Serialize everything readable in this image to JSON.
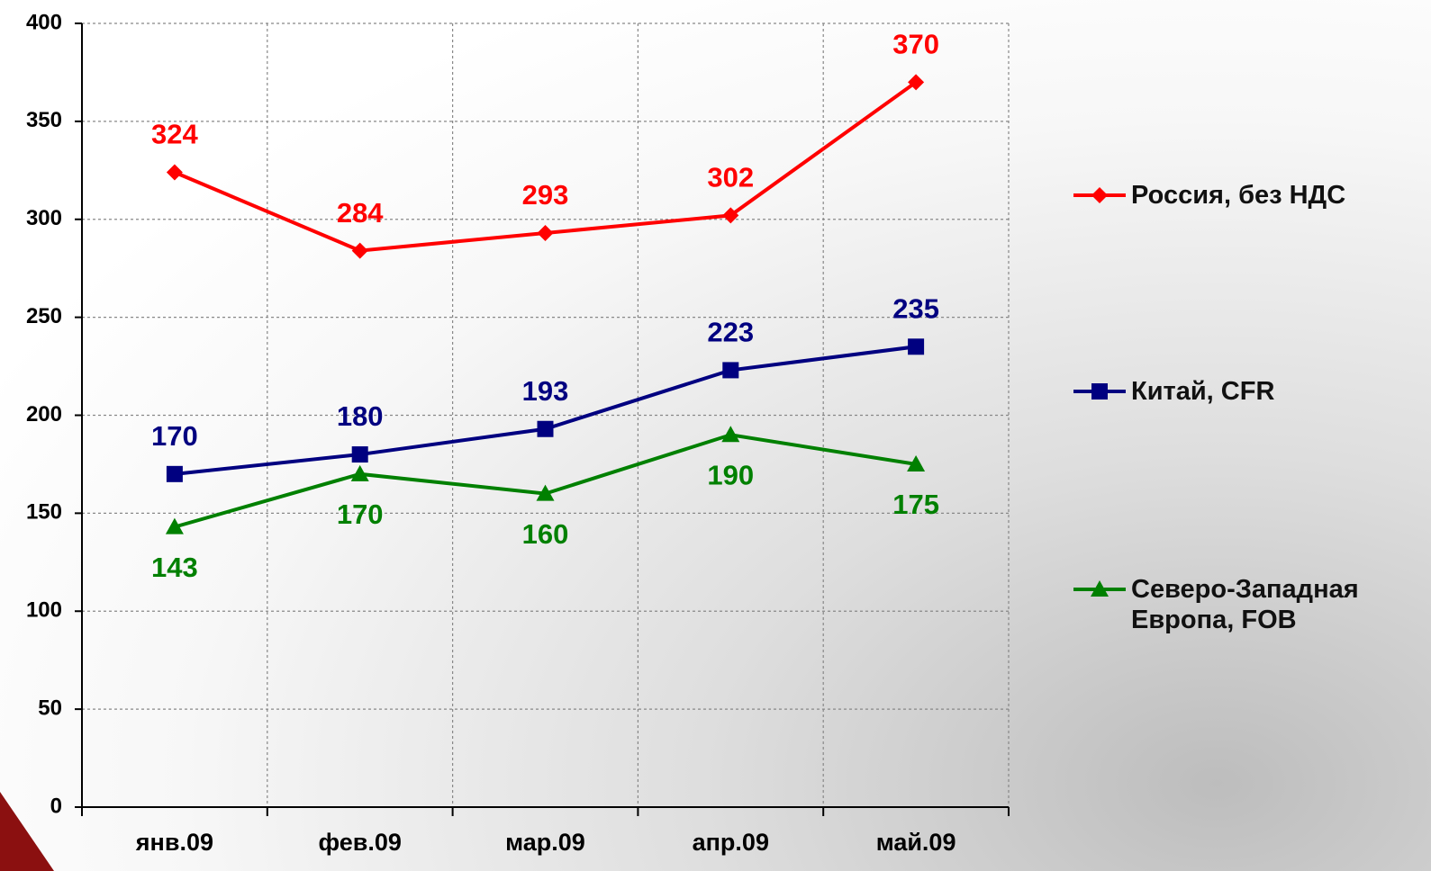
{
  "chart_data": {
    "type": "line",
    "categories": [
      "янв.09",
      "фев.09",
      "мар.09",
      "апр.09",
      "май.09"
    ],
    "series": [
      {
        "name": "Россия, без НДС",
        "color": "#ff0000",
        "marker": "diamond",
        "values": [
          324,
          284,
          293,
          302,
          370
        ]
      },
      {
        "name": "Китай, CFR",
        "color": "#000080",
        "marker": "square",
        "values": [
          170,
          180,
          193,
          223,
          235
        ]
      },
      {
        "name": "Северо-Западная Европа, FOB",
        "color": "#008000",
        "marker": "triangle",
        "values": [
          143,
          170,
          160,
          190,
          175
        ]
      }
    ],
    "ylim": [
      0,
      400
    ],
    "yticks": [
      0,
      50,
      100,
      150,
      200,
      250,
      300,
      350,
      400
    ],
    "grid": true,
    "legend": "right"
  }
}
